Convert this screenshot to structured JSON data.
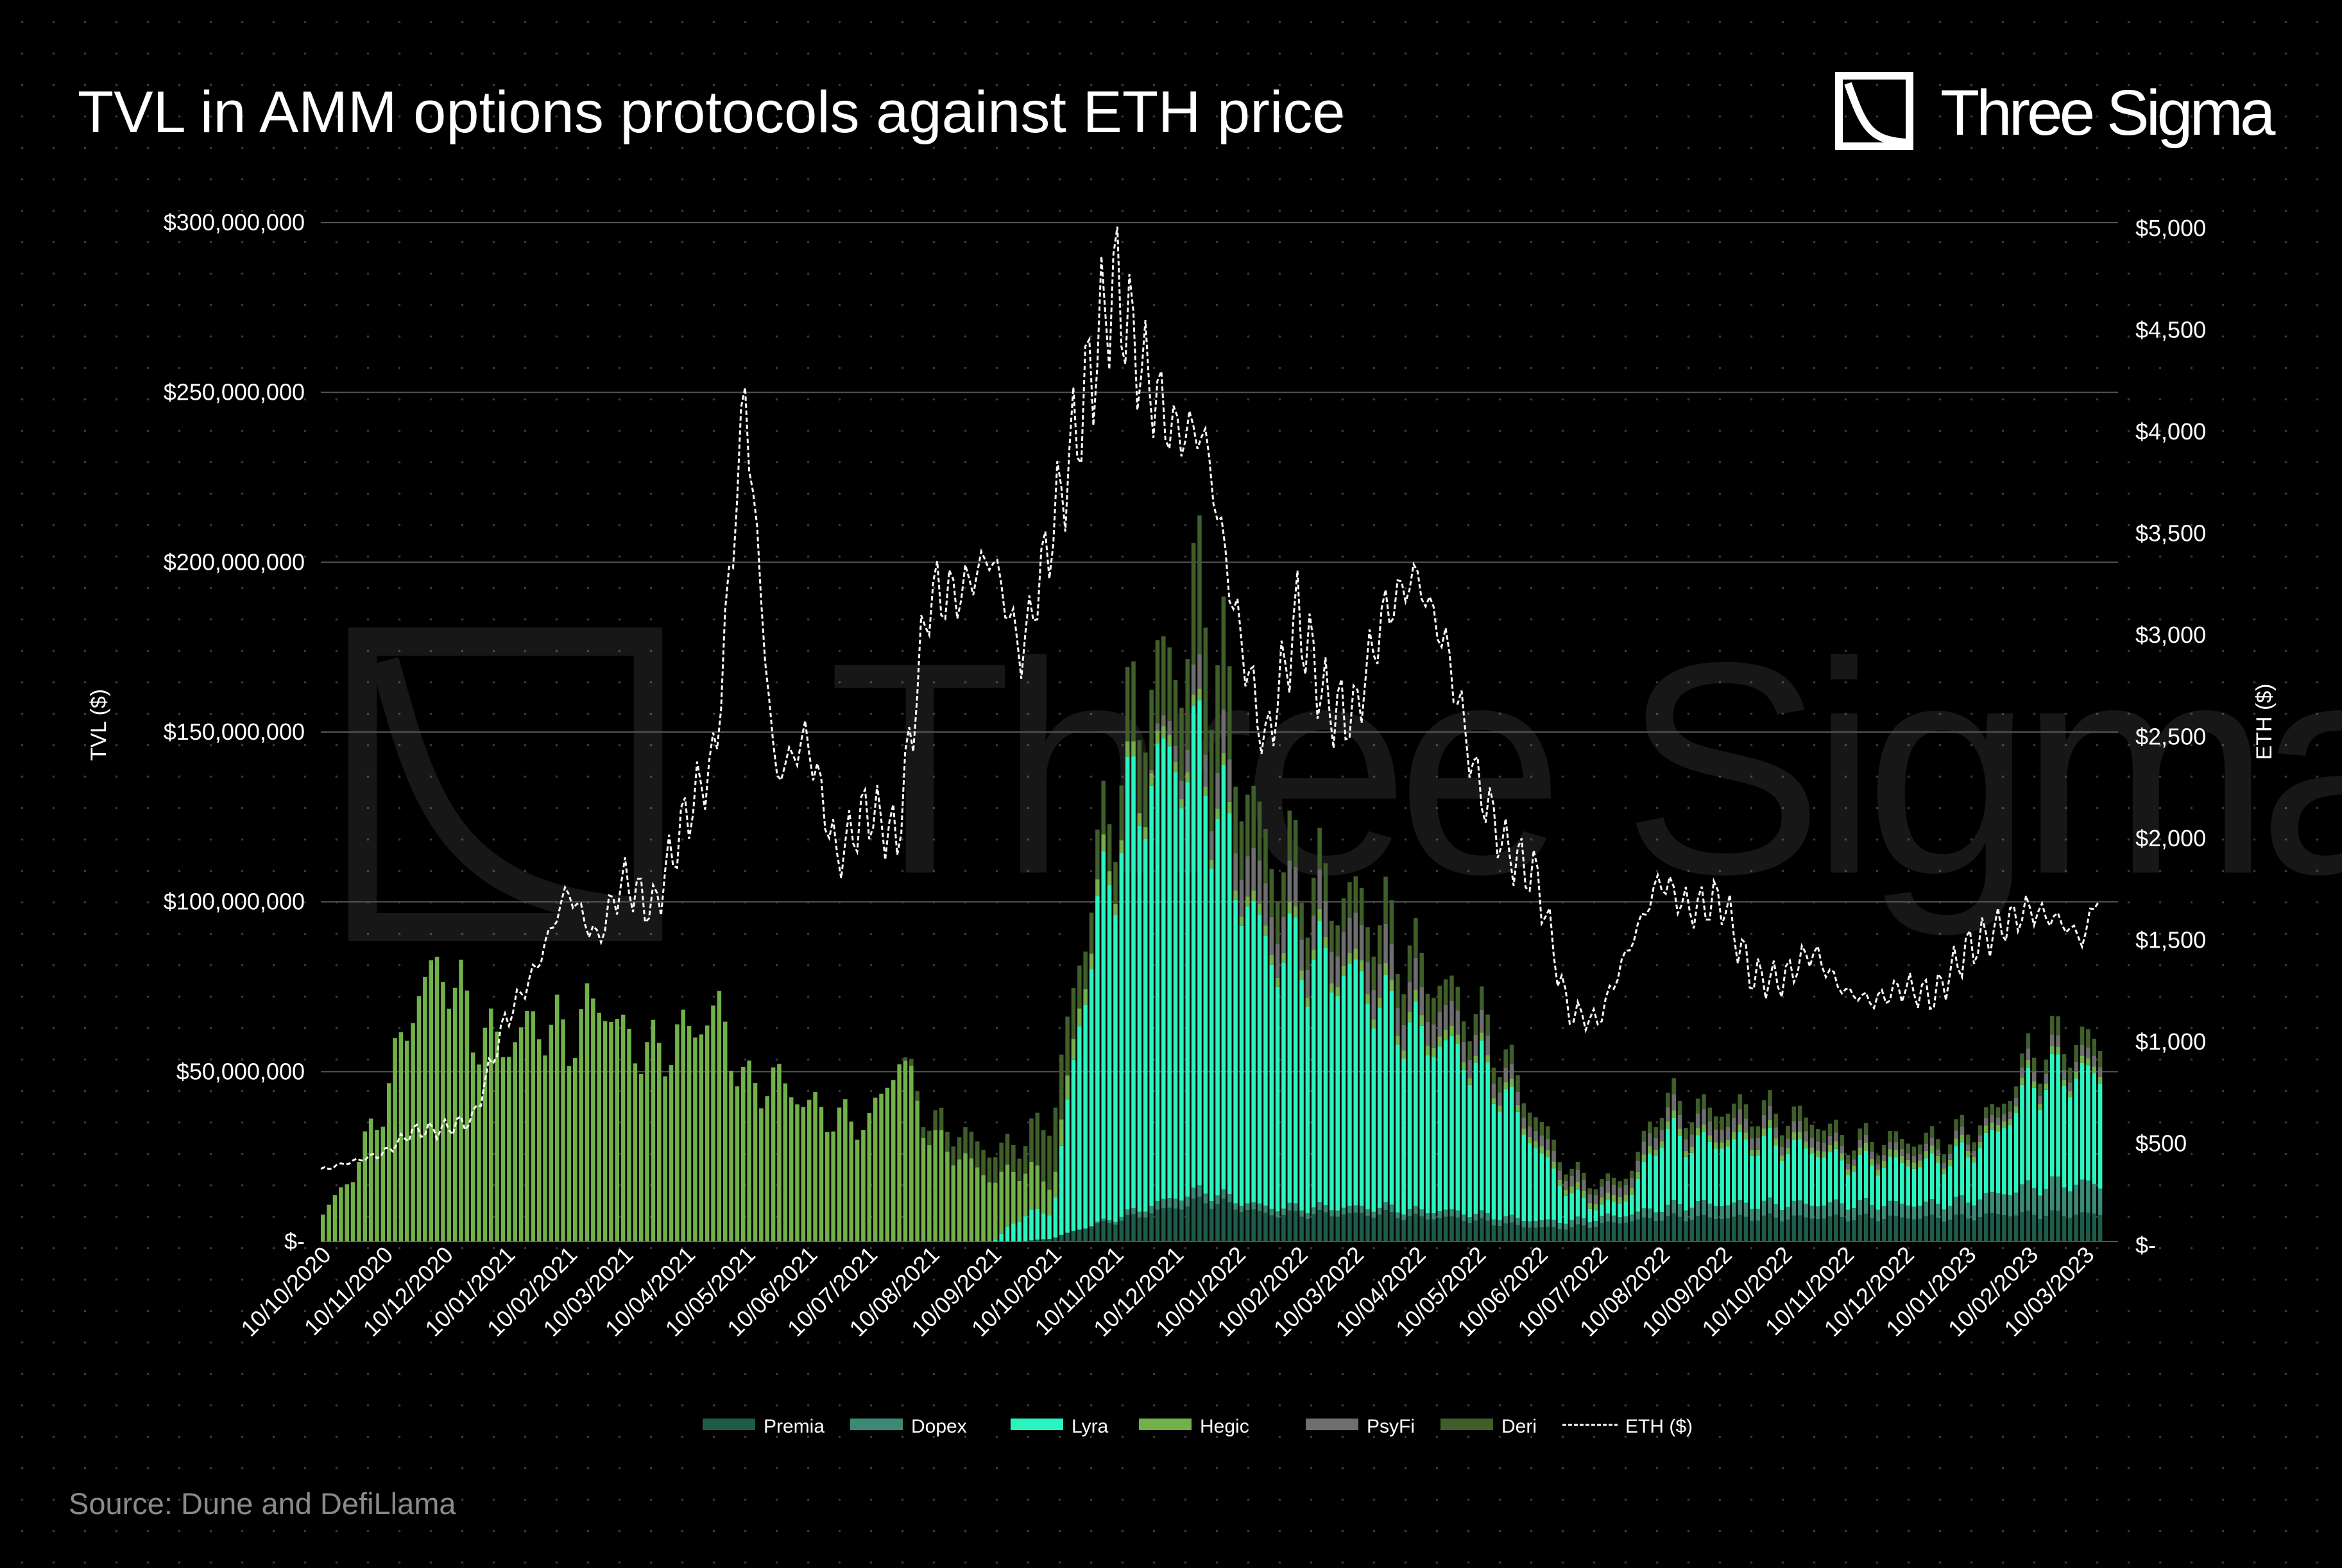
{
  "header": {
    "title": "TVL in AMM options protocols against ETH price"
  },
  "logo": {
    "text": "Three Sigma"
  },
  "watermark": {
    "text": "Three Sigma"
  },
  "source": "Source: Dune and DefiLlama",
  "colors": {
    "background": "#000000",
    "Premia": "#1e5c4a",
    "Dopex": "#3a8a75",
    "Lyra": "#2af5c0",
    "Hegic": "#72b04a",
    "PsyFi": "#6e6e6e",
    "Deri": "#3f5e2a",
    "ETH": "#ffffff",
    "grid": "#555555"
  },
  "chart_data": {
    "type": "bar",
    "stacked": true,
    "title": "TVL in AMM options protocols against ETH price",
    "ylabel": "TVL ($)",
    "y2label": "ETH ($)",
    "ylim": [
      0,
      300000000
    ],
    "y2lim": [
      0,
      5000
    ],
    "xlim": [
      "10/10/2020",
      "27/03/2023"
    ],
    "grid": true,
    "legend_position": "bottom",
    "yticks": [
      "$300,000,000",
      "$250,000,000",
      "$200,000,000",
      "$150,000,000",
      "$100,000,000",
      "$50,000,000",
      "$-"
    ],
    "y2ticks": [
      "$5,000",
      "$4,500",
      "$4,000",
      "$3,500",
      "$3,000",
      "$2,500",
      "$2,000",
      "$1,500",
      "$1,000",
      "$500",
      "$-"
    ],
    "xticks": [
      "10/10/2020",
      "10/11/2020",
      "10/12/2020",
      "10/01/2021",
      "10/02/2021",
      "10/03/2021",
      "10/04/2021",
      "10/05/2021",
      "10/06/2021",
      "10/07/2021",
      "10/08/2021",
      "10/09/2021",
      "10/10/2021",
      "10/11/2021",
      "10/12/2021",
      "10/01/2022",
      "10/02/2022",
      "10/03/2022",
      "10/04/2022",
      "10/05/2022",
      "10/06/2022",
      "10/07/2022",
      "10/08/2022",
      "10/09/2022",
      "10/10/2022",
      "10/11/2022",
      "10/12/2022",
      "10/01/2023",
      "10/02/2023",
      "10/03/2023"
    ],
    "x": [
      "10/10/2020",
      "25/10/2020",
      "10/11/2020",
      "25/11/2020",
      "10/12/2020",
      "25/12/2020",
      "10/01/2021",
      "25/01/2021",
      "10/02/2021",
      "25/02/2021",
      "10/03/2021",
      "25/03/2021",
      "10/04/2021",
      "25/04/2021",
      "10/05/2021",
      "25/05/2021",
      "10/06/2021",
      "25/06/2021",
      "10/07/2021",
      "25/07/2021",
      "10/08/2021",
      "25/08/2021",
      "10/09/2021",
      "25/09/2021",
      "10/10/2021",
      "25/10/2021",
      "10/11/2021",
      "25/11/2021",
      "10/12/2021",
      "25/12/2021",
      "10/01/2022",
      "25/01/2022",
      "10/02/2022",
      "25/02/2022",
      "10/03/2022",
      "25/03/2022",
      "10/04/2022",
      "25/04/2022",
      "10/05/2022",
      "25/05/2022",
      "10/06/2022",
      "25/06/2022",
      "10/07/2022",
      "25/07/2022",
      "10/08/2022",
      "25/08/2022",
      "10/09/2022",
      "25/09/2022",
      "10/10/2022",
      "25/10/2022",
      "10/11/2022",
      "25/11/2022",
      "10/12/2022",
      "25/12/2022",
      "10/01/2023",
      "25/01/2023",
      "10/02/2023",
      "25/02/2023",
      "10/03/2023",
      "18/03/2023"
    ],
    "series": [
      {
        "name": "Premia",
        "values": [
          0,
          0,
          0,
          0,
          0,
          0,
          0,
          0,
          0,
          0,
          0,
          0,
          0,
          0,
          0,
          0,
          0,
          0,
          0,
          0,
          0,
          0,
          0,
          0,
          1000000,
          4000000,
          6000000,
          8000000,
          10000000,
          12000000,
          10000000,
          8000000,
          8000000,
          8000000,
          8000000,
          8000000,
          7000000,
          7000000,
          6000000,
          5000000,
          4000000,
          4000000,
          5000000,
          6000000,
          7000000,
          7000000,
          7000000,
          7000000,
          7000000,
          7000000,
          7000000,
          7000000,
          7000000,
          7000000,
          7000000,
          8000000,
          8000000,
          8000000,
          8000000,
          8000000
        ]
      },
      {
        "name": "Dopex",
        "values": [
          0,
          0,
          0,
          0,
          0,
          0,
          0,
          0,
          0,
          0,
          0,
          0,
          0,
          0,
          0,
          0,
          0,
          0,
          0,
          0,
          0,
          0,
          0,
          0,
          0,
          0,
          1000000,
          2000000,
          3000000,
          3000000,
          2000000,
          2000000,
          2000000,
          2000000,
          2000000,
          2000000,
          2000000,
          2000000,
          2000000,
          2000000,
          2000000,
          2000000,
          2000000,
          2000000,
          3000000,
          4000000,
          4000000,
          4000000,
          4000000,
          4000000,
          4000000,
          4000000,
          4000000,
          4000000,
          5000000,
          6000000,
          8000000,
          9000000,
          9000000,
          8000000
        ]
      },
      {
        "name": "Lyra",
        "values": [
          0,
          0,
          0,
          0,
          0,
          0,
          0,
          0,
          0,
          0,
          0,
          0,
          0,
          0,
          0,
          0,
          0,
          0,
          0,
          0,
          0,
          0,
          0,
          8000000,
          8000000,
          70000000,
          110000000,
          125000000,
          130000000,
          125000000,
          95000000,
          75000000,
          75000000,
          70000000,
          68000000,
          58000000,
          52000000,
          48000000,
          44000000,
          35000000,
          20000000,
          8000000,
          3000000,
          5000000,
          22000000,
          18000000,
          18000000,
          18000000,
          17000000,
          16000000,
          12000000,
          12000000,
          12000000,
          12000000,
          14000000,
          18000000,
          30000000,
          32000000,
          32000000,
          32000000
        ]
      },
      {
        "name": "Hegic",
        "values": [
          8000000,
          20000000,
          42000000,
          72000000,
          82000000,
          62000000,
          58000000,
          65000000,
          60000000,
          72000000,
          60000000,
          55000000,
          62000000,
          68000000,
          45000000,
          48000000,
          40000000,
          36000000,
          35000000,
          55000000,
          30000000,
          25000000,
          18000000,
          14000000,
          8000000,
          5000000,
          4000000,
          4000000,
          3000000,
          3000000,
          3000000,
          3000000,
          3000000,
          3000000,
          3000000,
          3000000,
          3000000,
          3000000,
          2000000,
          2000000,
          2000000,
          2000000,
          2000000,
          2000000,
          2000000,
          2000000,
          2000000,
          2000000,
          2000000,
          2000000,
          2000000,
          2000000,
          2000000,
          2000000,
          2000000,
          2000000,
          2000000,
          2000000,
          2000000,
          2000000
        ]
      },
      {
        "name": "PsyFi",
        "values": [
          0,
          0,
          0,
          0,
          0,
          0,
          0,
          0,
          0,
          0,
          0,
          0,
          0,
          0,
          0,
          0,
          0,
          0,
          0,
          0,
          0,
          0,
          0,
          0,
          0,
          0,
          0,
          0,
          5000000,
          10000000,
          12000000,
          12000000,
          10000000,
          10000000,
          10000000,
          10000000,
          8000000,
          7000000,
          6000000,
          4000000,
          3000000,
          3000000,
          3000000,
          3000000,
          4000000,
          4000000,
          4000000,
          4000000,
          3000000,
          3000000,
          2000000,
          2000000,
          2000000,
          2000000,
          2000000,
          2000000,
          3000000,
          3000000,
          3000000,
          3000000
        ]
      },
      {
        "name": "Deri",
        "values": [
          0,
          0,
          0,
          0,
          0,
          0,
          0,
          0,
          0,
          0,
          0,
          0,
          0,
          0,
          0,
          0,
          0,
          0,
          0,
          0,
          5000000,
          7000000,
          8000000,
          8000000,
          20000000,
          12000000,
          15000000,
          25000000,
          20000000,
          40000000,
          20000000,
          15000000,
          12000000,
          10000000,
          10000000,
          12000000,
          10000000,
          7000000,
          6000000,
          5000000,
          4000000,
          2000000,
          2000000,
          2000000,
          4000000,
          4000000,
          4000000,
          4000000,
          4000000,
          4000000,
          3000000,
          3000000,
          3000000,
          3000000,
          3000000,
          3000000,
          4000000,
          5000000,
          5000000,
          5000000
        ]
      }
    ],
    "line": {
      "name": "ETH ($)",
      "axis": "right",
      "values": [
        370,
        410,
        450,
        560,
        570,
        620,
        1100,
        1350,
        1750,
        1500,
        1800,
        1650,
        2100,
        2400,
        4200,
        2300,
        2500,
        1900,
        2150,
        2000,
        3200,
        3200,
        3400,
        2900,
        3500,
        4100,
        4750,
        4300,
        4000,
        4000,
        3100,
        2450,
        3100,
        2650,
        2600,
        3100,
        3300,
        2950,
        2300,
        1950,
        1800,
        1150,
        1100,
        1450,
        1800,
        1650,
        1700,
        1320,
        1300,
        1450,
        1250,
        1200,
        1270,
        1220,
        1450,
        1550,
        1650,
        1600,
        1500,
        1780
      ]
    }
  }
}
